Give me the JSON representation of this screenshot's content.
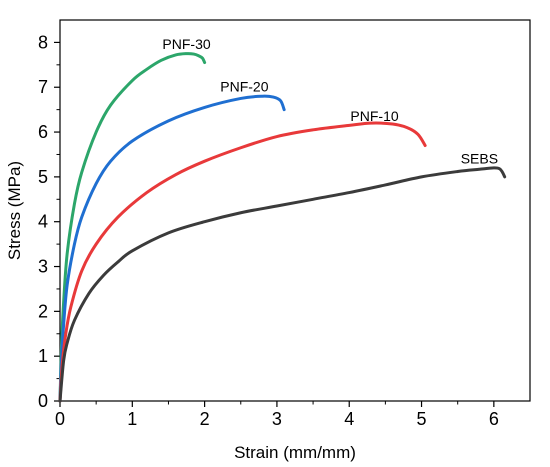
{
  "chart_data": {
    "type": "line",
    "xlabel": "Strain (mm/mm)",
    "ylabel": "Stress (MPa)",
    "xlim": [
      0,
      6.5
    ],
    "ylim": [
      0,
      8.5
    ],
    "x_ticks": [
      0,
      1,
      2,
      3,
      4,
      5,
      6
    ],
    "y_ticks": [
      0,
      1,
      2,
      3,
      4,
      5,
      6,
      7,
      8
    ],
    "x_tick_labels": [
      "0",
      "1",
      "2",
      "3",
      "4",
      "5",
      "6"
    ],
    "y_tick_labels": [
      "0",
      "1",
      "2",
      "3",
      "4",
      "5",
      "6",
      "7",
      "8"
    ],
    "grid": false,
    "legend": "none",
    "series": [
      {
        "name": "PNF-30",
        "color": "#2ca66a",
        "x": [
          0,
          0.02,
          0.05,
          0.1,
          0.2,
          0.3,
          0.5,
          0.7,
          1.0,
          1.2,
          1.4,
          1.6,
          1.75,
          1.85,
          1.92,
          1.97,
          2.0
        ],
        "y": [
          0,
          1.2,
          2.2,
          3.3,
          4.4,
          5.1,
          6.0,
          6.6,
          7.15,
          7.4,
          7.6,
          7.72,
          7.75,
          7.74,
          7.7,
          7.65,
          7.55
        ]
      },
      {
        "name": "PNF-20",
        "color": "#1f6fd1",
        "x": [
          0,
          0.02,
          0.05,
          0.1,
          0.2,
          0.3,
          0.5,
          0.7,
          1.0,
          1.5,
          2.0,
          2.5,
          2.8,
          2.95,
          3.05,
          3.1
        ],
        "y": [
          0,
          0.9,
          1.7,
          2.6,
          3.5,
          4.1,
          4.85,
          5.35,
          5.8,
          6.25,
          6.55,
          6.75,
          6.8,
          6.78,
          6.7,
          6.5
        ]
      },
      {
        "name": "PNF-10",
        "color": "#e8393a",
        "x": [
          0,
          0.03,
          0.08,
          0.15,
          0.3,
          0.5,
          0.8,
          1.2,
          1.6,
          2.0,
          2.5,
          3.0,
          3.5,
          4.0,
          4.3,
          4.6,
          4.8,
          4.95,
          5.05
        ],
        "y": [
          0,
          0.8,
          1.5,
          2.1,
          2.9,
          3.5,
          4.1,
          4.65,
          5.05,
          5.35,
          5.65,
          5.9,
          6.05,
          6.15,
          6.2,
          6.18,
          6.1,
          5.95,
          5.7
        ]
      },
      {
        "name": "SEBS",
        "color": "#3b3b3b",
        "x": [
          0,
          0.05,
          0.1,
          0.2,
          0.4,
          0.6,
          0.8,
          1.0,
          1.5,
          2.0,
          2.5,
          3.0,
          3.5,
          4.0,
          4.5,
          5.0,
          5.5,
          5.8,
          6.0,
          6.08,
          6.12,
          6.15
        ],
        "y": [
          0,
          0.9,
          1.3,
          1.8,
          2.4,
          2.8,
          3.1,
          3.35,
          3.75,
          4.0,
          4.2,
          4.35,
          4.5,
          4.65,
          4.82,
          5.0,
          5.12,
          5.17,
          5.2,
          5.18,
          5.1,
          5.0
        ]
      }
    ],
    "annotations": [
      {
        "text": "PNF-30",
        "x": 1.75,
        "y": 7.85
      },
      {
        "text": "PNF-20",
        "x": 2.55,
        "y": 6.9
      },
      {
        "text": "PNF-10",
        "x": 4.35,
        "y": 6.25
      },
      {
        "text": "SEBS",
        "x": 5.8,
        "y": 5.3
      }
    ]
  }
}
